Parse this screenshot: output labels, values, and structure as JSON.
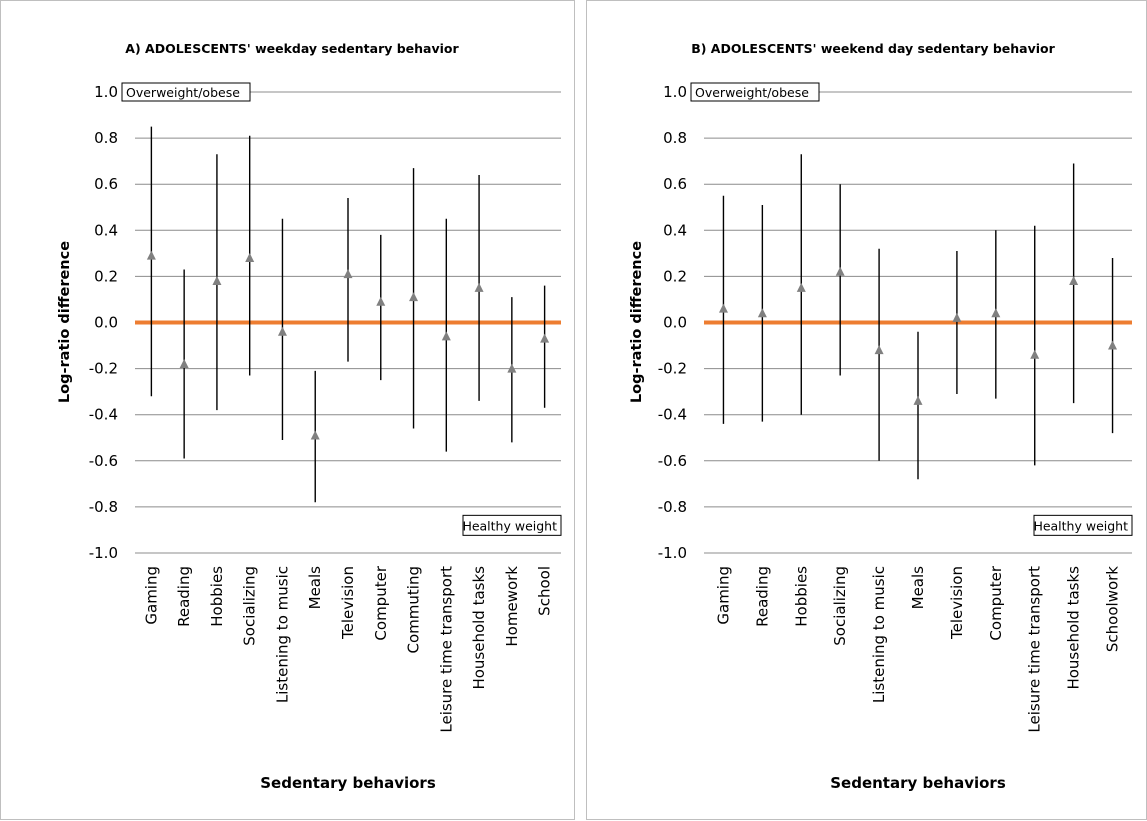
{
  "chart_data": [
    {
      "type": "scatter",
      "title": "A) ADOLESCENTS' weekday sedentary behavior",
      "ylabel": "Log-ratio difference",
      "xlabel": "Sedentary behaviors",
      "ylim": [
        -1.0,
        1.0
      ],
      "yticks": [
        "1.0",
        "0.8",
        "0.6",
        "0.4",
        "0.2",
        "0.0",
        "-0.2",
        "-0.4",
        "-0.6",
        "-0.8",
        "-1.0"
      ],
      "grid": true,
      "annotations": {
        "top": "Overweight/obese",
        "bottom": "Healthy weight"
      },
      "colors": {
        "reference_line": "#ed7d31",
        "marker": "#808080",
        "error_bar": "#000000"
      },
      "categories": [
        "Gaming",
        "Reading",
        "Hobbies",
        "Socializing",
        "Listening to music",
        "Meals",
        "Television",
        "Computer",
        "Commuting",
        "Leisure time transport",
        "Household tasks",
        "Homework",
        "School"
      ],
      "values": [
        0.29,
        -0.18,
        0.18,
        0.28,
        -0.04,
        -0.49,
        0.21,
        0.09,
        0.11,
        -0.06,
        0.15,
        -0.2,
        -0.07
      ],
      "lower": [
        -0.32,
        -0.59,
        -0.38,
        -0.23,
        -0.51,
        -0.78,
        -0.17,
        -0.25,
        -0.46,
        -0.56,
        -0.34,
        -0.52,
        -0.37
      ],
      "upper": [
        0.85,
        0.23,
        0.73,
        0.81,
        0.45,
        -0.21,
        0.54,
        0.38,
        0.67,
        0.45,
        0.64,
        0.11,
        0.16
      ]
    },
    {
      "type": "scatter",
      "title": "B) ADOLESCENTS' weekend day sedentary behavior",
      "ylabel": "Log-ratio difference",
      "xlabel": "Sedentary behaviors",
      "ylim": [
        -1.0,
        1.0
      ],
      "yticks": [
        "1.0",
        "0.8",
        "0.6",
        "0.4",
        "0.2",
        "0.0",
        "-0.2",
        "-0.4",
        "-0.6",
        "-0.8",
        "-1.0"
      ],
      "grid": true,
      "annotations": {
        "top": "Overweight/obese",
        "bottom": "Healthy weight"
      },
      "colors": {
        "reference_line": "#ed7d31",
        "marker": "#808080",
        "error_bar": "#000000"
      },
      "categories": [
        "Gaming",
        "Reading",
        "Hobbies",
        "Socializing",
        "Listening to music",
        "Meals",
        "Television",
        "Computer",
        "Leisure time transport",
        "Household tasks",
        "Schoolwork"
      ],
      "values": [
        0.06,
        0.04,
        0.15,
        0.22,
        -0.12,
        -0.34,
        0.02,
        0.04,
        -0.14,
        0.18,
        -0.1
      ],
      "lower": [
        -0.44,
        -0.43,
        -0.4,
        -0.23,
        -0.6,
        -0.68,
        -0.31,
        -0.33,
        -0.62,
        -0.35,
        -0.48
      ],
      "upper": [
        0.55,
        0.51,
        0.73,
        0.6,
        0.32,
        -0.04,
        0.31,
        0.4,
        0.42,
        0.69,
        0.28
      ]
    }
  ]
}
